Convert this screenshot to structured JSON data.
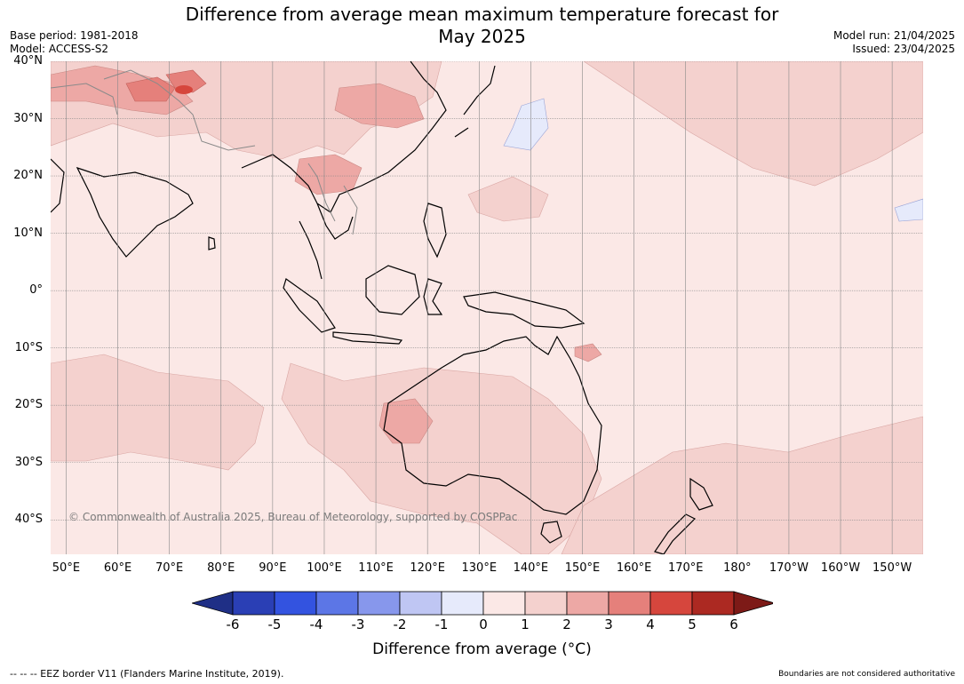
{
  "title": {
    "line1": "Difference from average mean maximum temperature forecast for",
    "line2": "May 2025"
  },
  "meta_left": {
    "base_period": "Base period: 1981-2018",
    "model": "Model: ACCESS-S2"
  },
  "meta_right": {
    "model_run": "Model run: 21/04/2025",
    "issued": "Issued: 23/04/2025"
  },
  "map": {
    "lat_labels": [
      "40°N",
      "30°N",
      "20°N",
      "10°N",
      "0°",
      "10°S",
      "20°S",
      "30°S",
      "40°S"
    ],
    "lat_values": [
      40,
      30,
      20,
      10,
      0,
      -10,
      -20,
      -30,
      -40
    ],
    "lon_labels": [
      "50°E",
      "60°E",
      "70°E",
      "80°E",
      "90°E",
      "100°E",
      "110°E",
      "120°E",
      "130°E",
      "140°E",
      "150°E",
      "160°E",
      "170°E",
      "180°",
      "170°W",
      "160°W",
      "150°W"
    ],
    "lon_values": [
      50,
      60,
      70,
      80,
      90,
      100,
      110,
      120,
      130,
      140,
      150,
      160,
      170,
      180,
      190,
      200,
      210
    ],
    "lon_range": [
      47,
      216
    ],
    "lat_range": [
      -46,
      40
    ],
    "copyright": "© Commonwealth of Australia 2025, Bureau of Meteorology, supported by COSPPac",
    "background_class_color": "#fbe8e6"
  },
  "colorbar": {
    "ticks": [
      "-6",
      "-5",
      "-4",
      "-3",
      "-2",
      "-1",
      "0",
      "1",
      "2",
      "3",
      "4",
      "5",
      "6"
    ],
    "colors": [
      "#1f2f86",
      "#2a3fb5",
      "#3353e0",
      "#5c76e6",
      "#8797ec",
      "#bfc6f3",
      "#e6eafb",
      "#fbe8e6",
      "#f4d1ce",
      "#eda8a5",
      "#e5807b",
      "#d6463d",
      "#ac2922",
      "#7d1a17"
    ],
    "title": "Difference from average ($^\\circ$C)",
    "title_display": "Difference from average (°C)"
  },
  "footer": {
    "left": "--  --  -- EEZ border V11 (Flanders Marine Institute, 2019).",
    "right": "Boundaries are not considered authoritative"
  }
}
